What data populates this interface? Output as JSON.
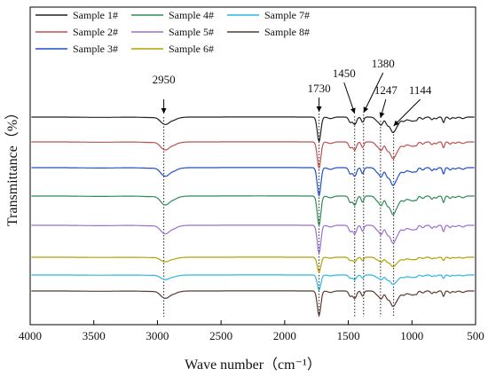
{
  "chart_data": {
    "type": "line",
    "xlabel": "Wave number（cm⁻¹）",
    "ylabel": "Transmittance（%）",
    "xlim": [
      4000,
      500
    ],
    "x_reversed": true,
    "x_ticks": [
      4000,
      3500,
      3000,
      2500,
      2000,
      1500,
      1000,
      500
    ],
    "y_ticks_shown": false,
    "grid": false,
    "legend_position": "top-left",
    "series": [
      {
        "name": "Sample 1#",
        "color": "#222222",
        "baseline": 132
      },
      {
        "name": "Sample 2#",
        "color": "#c0504d",
        "baseline": 160
      },
      {
        "name": "Sample 3#",
        "color": "#2050c8",
        "baseline": 189
      },
      {
        "name": "Sample 4#",
        "color": "#2e8b57",
        "baseline": 221
      },
      {
        "name": "Sample 5#",
        "color": "#9b6fd1",
        "baseline": 254
      },
      {
        "name": "Sample 6#",
        "color": "#b5a000",
        "baseline": 290
      },
      {
        "name": "Sample 7#",
        "color": "#2ab7e0",
        "baseline": 310
      },
      {
        "name": "Sample 8#",
        "color": "#5a3a32",
        "baseline": 328
      }
    ],
    "peaks": [
      {
        "wavenumber": 2950,
        "label": "2950"
      },
      {
        "wavenumber": 1730,
        "label": "1730"
      },
      {
        "wavenumber": 1450,
        "label": "1450"
      },
      {
        "wavenumber": 1380,
        "label": "1380"
      },
      {
        "wavenumber": 1247,
        "label": "1247"
      },
      {
        "wavenumber": 1144,
        "label": "1144"
      }
    ]
  }
}
